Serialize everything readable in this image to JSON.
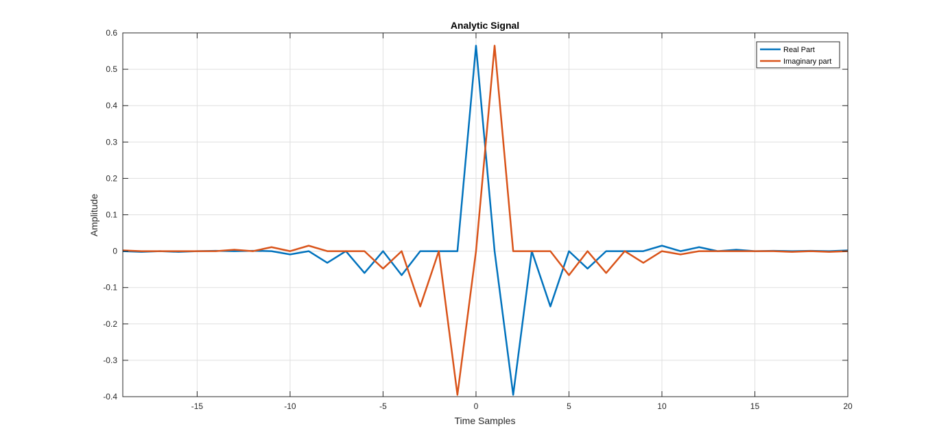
{
  "chart_data": {
    "type": "line",
    "title": "Analytic Signal",
    "xlabel": "Time Samples",
    "ylabel": "Amplitude",
    "xlim": [
      -19,
      20
    ],
    "ylim": [
      -0.4,
      0.6
    ],
    "xticks": [
      -15,
      -10,
      -5,
      0,
      5,
      10,
      15,
      20
    ],
    "yticks": [
      -0.4,
      -0.3,
      -0.2,
      -0.1,
      0,
      0.1,
      0.2,
      0.3,
      0.4,
      0.5,
      0.6
    ],
    "grid": true,
    "legend_position": "top-right",
    "x": [
      -19,
      -18,
      -17,
      -16,
      -15,
      -14,
      -13,
      -12,
      -11,
      -10,
      -9,
      -8,
      -7,
      -6,
      -5,
      -4,
      -3,
      -2,
      -1,
      0,
      1,
      2,
      3,
      4,
      5,
      6,
      7,
      8,
      9,
      10,
      11,
      12,
      13,
      14,
      15,
      16,
      17,
      18,
      19,
      20
    ],
    "series": [
      {
        "name": "Real Part",
        "color": "#0072bd",
        "values": [
          0,
          -0.002,
          0,
          -0.002,
          0,
          0.001,
          0,
          0.001,
          0,
          -0.009,
          0,
          -0.032,
          0,
          -0.06,
          0,
          -0.066,
          0,
          0,
          0,
          0.565,
          0,
          -0.395,
          0,
          -0.152,
          0,
          -0.048,
          0,
          0,
          0,
          0.015,
          0,
          0.011,
          0,
          0.004,
          0,
          0.001,
          0,
          0.001,
          0,
          0.002
        ]
      },
      {
        "name": "Imaginary part",
        "color": "#d95319",
        "values": [
          0.002,
          0,
          0,
          0,
          0,
          0,
          0.004,
          0,
          0.011,
          0,
          0.015,
          0,
          0,
          0,
          -0.048,
          0,
          -0.152,
          0,
          -0.395,
          0,
          0.565,
          0,
          0,
          0,
          -0.066,
          0,
          -0.06,
          0,
          -0.032,
          0,
          -0.009,
          0,
          0,
          0,
          0,
          0,
          -0.002,
          0,
          -0.002,
          0
        ]
      }
    ]
  }
}
